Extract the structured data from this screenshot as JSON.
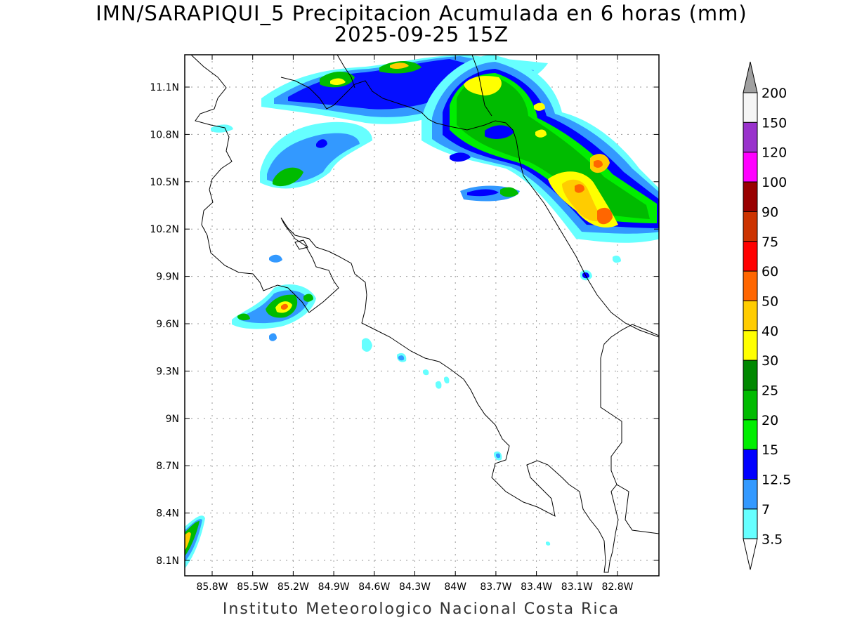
{
  "title": {
    "line1": "IMN/SARAPIQUI_5 Precipitacion Acumulada en 6 horas (mm)",
    "line2": "2025-09-25 15Z"
  },
  "footer": "Instituto Meteorologico Nacional Costa Rica",
  "map": {
    "lat_range": [
      8.0,
      11.3
    ],
    "lon_range": [
      -86.0,
      -83.0
    ],
    "lat_ticks": [
      {
        "value": 11.1,
        "label": "11.1N"
      },
      {
        "value": 10.8,
        "label": "10.8N"
      },
      {
        "value": 10.5,
        "label": "10.5N"
      },
      {
        "value": 10.2,
        "label": "10.2N"
      },
      {
        "value": 9.9,
        "label": "9.9N"
      },
      {
        "value": 9.6,
        "label": "9.6N"
      },
      {
        "value": 9.3,
        "label": "9.3N"
      },
      {
        "value": 9.0,
        "label": "9N"
      },
      {
        "value": 8.7,
        "label": "8.7N"
      },
      {
        "value": 8.4,
        "label": "8.4N"
      },
      {
        "value": 8.1,
        "label": "8.1N"
      }
    ],
    "lon_ticks": [
      {
        "value": -85.8,
        "label": "85.8W"
      },
      {
        "value": -85.5,
        "label": "85.5W"
      },
      {
        "value": -85.2,
        "label": "85.2W"
      },
      {
        "value": -84.9,
        "label": "84.9W"
      },
      {
        "value": -84.6,
        "label": "84.6W"
      },
      {
        "value": -84.3,
        "label": "84.3W"
      },
      {
        "value": -84.0,
        "label": "84W"
      },
      {
        "value": -83.7,
        "label": "83.7W"
      },
      {
        "value": -83.4,
        "label": "83.4W"
      },
      {
        "value": -83.1,
        "label": "83.1W"
      },
      {
        "value": -82.8,
        "label": "82.8W"
      }
    ],
    "grid": true
  },
  "legend": {
    "units": "mm",
    "levels": [
      "200",
      "150",
      "120",
      "100",
      "90",
      "75",
      "60",
      "50",
      "40",
      "30",
      "25",
      "20",
      "15",
      "12.5",
      "7",
      "3.5"
    ],
    "colors": [
      "#f5f5f5",
      "#9932cc",
      "#ff00ff",
      "#990000",
      "#cc3300",
      "#ff0000",
      "#ff6600",
      "#ffcc00",
      "#ffff00",
      "#008800",
      "#00bb00",
      "#00ee00",
      "#0000ff",
      "#3399ff",
      "#66ffff"
    ],
    "top_arrow_color": "#a0a0a0",
    "bottom_arrow_color": "#ffffff"
  }
}
